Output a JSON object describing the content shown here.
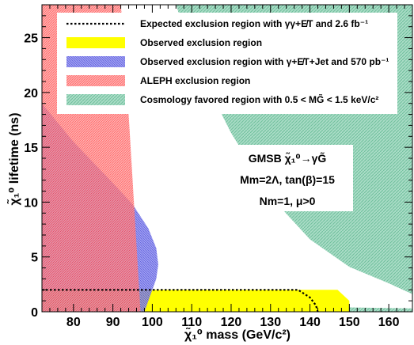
{
  "chart_data": {
    "type": "area",
    "xlabel": "χ̃₁⁰ mass (GeV/c²)",
    "ylabel": "χ̃₁⁰ lifetime (ns)",
    "xlim": [
      72,
      166
    ],
    "ylim": [
      0,
      28
    ],
    "x_ticks": [
      80,
      90,
      100,
      110,
      120,
      130,
      140,
      150,
      160
    ],
    "y_ticks": [
      0,
      5,
      10,
      15,
      20,
      25
    ],
    "legend_position": "top",
    "series": [
      {
        "name": "Expected exclusion region with γγ+E̸T and 2.6 fb⁻¹",
        "style": "dotted line",
        "color": "#000000",
        "points": [
          [
            72,
            2.0
          ],
          [
            137,
            2.0
          ],
          [
            140,
            1.3
          ],
          [
            141.5,
            0.6
          ],
          [
            142,
            0
          ]
        ]
      },
      {
        "name": "Observed exclusion region",
        "style": "filled",
        "color": "#ffff00",
        "points": [
          [
            72,
            0
          ],
          [
            72,
            2.0
          ],
          [
            147,
            2.0
          ],
          [
            150,
            1.0
          ],
          [
            150,
            0
          ]
        ]
      },
      {
        "name": "Observed exclusion region with γ+E̸T+Jet and 570 pb⁻¹",
        "style": "hatched",
        "color": "#6a6ae8",
        "points": [
          [
            72,
            0
          ],
          [
            72,
            19
          ],
          [
            80,
            15.5
          ],
          [
            88,
            12.5
          ],
          [
            95,
            9.8
          ],
          [
            99,
            7.6
          ],
          [
            101,
            5.8
          ],
          [
            101.5,
            4.3
          ],
          [
            101,
            3.0
          ],
          [
            98,
            0
          ]
        ]
      },
      {
        "name": "ALEPH exclusion region",
        "style": "hatched",
        "color": "#ff7a7a",
        "points": [
          [
            72,
            0
          ],
          [
            72,
            28
          ],
          [
            92,
            28
          ],
          [
            93,
            24
          ],
          [
            94,
            18
          ],
          [
            95,
            12
          ],
          [
            96,
            6
          ],
          [
            97,
            0
          ]
        ]
      },
      {
        "name": "Cosmology favored region with 0.5 < MG̃ < 1.5 keV/c²",
        "style": "hatched",
        "color": "#77c2a6",
        "points": [
          [
            106,
            28
          ],
          [
            166,
            28
          ],
          [
            166,
            1.6
          ],
          [
            160,
            2.6
          ],
          [
            150,
            4.1
          ],
          [
            140,
            6.6
          ],
          [
            130,
            10.5
          ],
          [
            120,
            16.3
          ],
          [
            113,
            21.3
          ],
          [
            109,
            24.8
          ],
          [
            106,
            28
          ]
        ]
      },
      {
        "name": "",
        "style": "hatched",
        "color": "#77c2a6",
        "points": [
          [
            72,
            0
          ],
          [
            72,
            0.8
          ],
          [
            90,
            0.7
          ],
          [
            110,
            0.6
          ],
          [
            130,
            0.5
          ],
          [
            150,
            0.4
          ],
          [
            166,
            0.3
          ],
          [
            166,
            0
          ]
        ]
      }
    ]
  },
  "model_box": {
    "line1": "GMSB χ̃₁⁰→γG̃",
    "line2": "Mm=2Λ, tan(β)=15",
    "line3": "Nm=1, μ>0"
  }
}
